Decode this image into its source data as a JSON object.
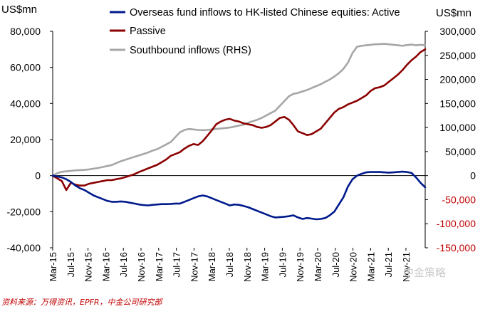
{
  "chart_data": {
    "type": "line",
    "left_axis_unit": "US$mn",
    "right_axis_unit": "US$mn",
    "left_ylim": [
      -40000,
      80000
    ],
    "right_ylim": [
      -150000,
      300000
    ],
    "left_ticks": [
      "80,000",
      "60,000",
      "40,000",
      "20,000",
      "0",
      "-20,000",
      "-40,000"
    ],
    "right_ticks": [
      "300,000",
      "250,000",
      "200,000",
      "150,000",
      "100,000",
      "50,000",
      "0",
      "-50,000",
      "-100,000",
      "-150,000"
    ],
    "right_tick_colors": [
      "#000000",
      "#000000",
      "#000000",
      "#000000",
      "#000000",
      "#000000",
      "#000000",
      "#c00000",
      "#c00000",
      "#c00000"
    ],
    "x_ticks": [
      "Mar-15",
      "Jul-15",
      "Nov-15",
      "Mar-16",
      "Jul-16",
      "Nov-16",
      "Mar-17",
      "Jul-17",
      "Nov-17",
      "Mar-18",
      "Jul-18",
      "Nov-18",
      "Mar-19",
      "Jul-19",
      "Nov-19",
      "Mar-20",
      "Jul-20",
      "Nov-20",
      "Mar-21",
      "Jul-21",
      "Nov-21"
    ],
    "x": [
      0,
      1,
      2,
      3,
      4,
      5,
      6,
      7,
      8,
      9,
      10,
      11,
      12,
      13,
      14,
      15,
      16,
      17,
      18,
      19,
      20,
      21,
      22,
      23,
      24,
      25,
      26,
      27,
      28,
      29,
      30,
      31,
      32,
      33,
      34,
      35,
      36,
      37,
      38,
      39,
      40,
      41,
      42,
      43,
      44,
      45,
      46,
      47,
      48,
      49,
      50,
      51,
      52,
      53,
      54,
      55,
      56,
      57,
      58,
      59,
      60,
      61,
      62,
      63,
      64,
      65,
      66,
      67,
      68,
      69,
      70,
      71,
      72,
      73,
      74,
      75,
      76,
      77,
      78,
      79,
      80,
      81,
      82
    ],
    "series": [
      {
        "name": "Overseas fund inflows to HK-listed Chinese equities: Active",
        "color": "#001a8c",
        "axis": "left",
        "values": [
          0,
          -500,
          -1000,
          -2000,
          -3500,
          -5500,
          -7000,
          -8000,
          -9500,
          -11000,
          -12000,
          -13000,
          -14000,
          -14500,
          -14500,
          -14300,
          -14500,
          -15000,
          -15500,
          -16000,
          -16300,
          -16500,
          -16200,
          -16000,
          -15800,
          -15800,
          -15700,
          -15500,
          -15500,
          -14500,
          -13500,
          -12500,
          -11500,
          -11000,
          -11500,
          -12500,
          -13500,
          -14500,
          -15500,
          -16500,
          -16000,
          -16200,
          -16800,
          -17500,
          -18500,
          -19500,
          -20500,
          -21500,
          -22500,
          -23200,
          -23000,
          -22800,
          -22500,
          -22000,
          -23200,
          -24000,
          -23500,
          -23800,
          -24200,
          -24000,
          -23500,
          -22000,
          -20000,
          -16000,
          -12000,
          -6000,
          -2000,
          0,
          1000,
          1800,
          2000,
          2000,
          2000,
          1800,
          1700,
          1800,
          2000,
          2200,
          2000,
          1500,
          -1000,
          -4000,
          -6500
        ]
      },
      {
        "name": "Passive",
        "color": "#8b0000",
        "axis": "left",
        "values": [
          0,
          -1500,
          -3000,
          -8000,
          -4000,
          -5000,
          -5500,
          -5500,
          -4500,
          -4000,
          -3500,
          -3000,
          -2500,
          -2500,
          -2000,
          -1500,
          -800,
          0,
          800,
          2000,
          3000,
          4000,
          5000,
          6000,
          7500,
          9000,
          11000,
          12000,
          13000,
          15000,
          16500,
          17500,
          17000,
          19000,
          22000,
          25000,
          28500,
          30000,
          31000,
          31500,
          30500,
          30000,
          29000,
          28500,
          28000,
          27000,
          26500,
          27000,
          28000,
          30000,
          32000,
          32500,
          31000,
          28000,
          24500,
          23500,
          22500,
          23000,
          24500,
          26000,
          29000,
          32000,
          35000,
          37000,
          38000,
          39500,
          40500,
          41500,
          43000,
          44500,
          47000,
          48500,
          49000,
          50000,
          52000,
          54000,
          56000,
          58500,
          61500,
          64000,
          66000,
          68500,
          70000
        ]
      },
      {
        "name": "Southbound inflows (RHS)",
        "color": "#a6a6a6",
        "axis": "right",
        "values": [
          0,
          5000,
          8000,
          9000,
          10000,
          11000,
          11500,
          12000,
          13000,
          14500,
          16000,
          18000,
          20000,
          22000,
          26000,
          30000,
          33000,
          36000,
          39000,
          42000,
          45000,
          48000,
          52000,
          55000,
          60000,
          65000,
          70000,
          80000,
          90000,
          95000,
          97000,
          96000,
          95000,
          94500,
          95000,
          96000,
          97000,
          98000,
          99000,
          100000,
          102000,
          104000,
          106000,
          110000,
          113000,
          116000,
          120000,
          125000,
          130000,
          135000,
          145000,
          155000,
          165000,
          170000,
          172000,
          175000,
          178000,
          182000,
          186000,
          190000,
          195000,
          200000,
          206000,
          213000,
          222000,
          235000,
          255000,
          268000,
          270000,
          271000,
          272000,
          273000,
          273500,
          274000,
          273000,
          272000,
          271000,
          270000,
          271500,
          272500,
          271000,
          272000,
          271000
        ]
      }
    ]
  },
  "footnote": "资料来源：万得资讯，EPFR，中金公司研究部",
  "watermark": "中金策略"
}
